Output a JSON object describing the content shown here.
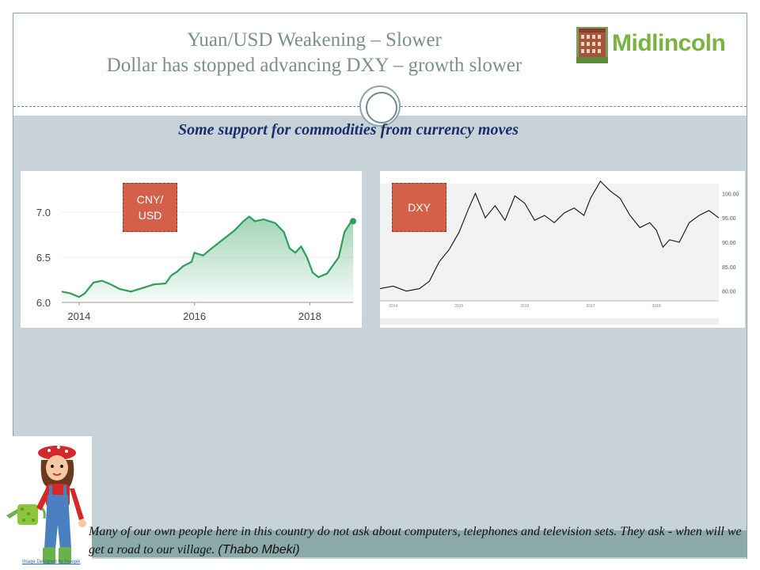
{
  "header": {
    "title_line_1": "Yuan/USD Weakening – Slower",
    "title_line_2": "Dollar has stopped advancing DXY – growth slower",
    "logo_text": "Midlincoln"
  },
  "subtitle": "Some support for commodities from currency moves",
  "chart_data": [
    {
      "type": "area",
      "tag": "CNY/\nUSD",
      "x_tick_labels": [
        "2014",
        "2016",
        "2018"
      ],
      "y_tick_labels": [
        "6.0",
        "6.5",
        "7.0"
      ],
      "ylim": [
        6.0,
        7.0
      ],
      "xlim": [
        2013.7,
        2018.75
      ],
      "x": [
        2013.7,
        2013.85,
        2014.0,
        2014.1,
        2014.25,
        2014.4,
        2014.55,
        2014.7,
        2014.9,
        2015.1,
        2015.3,
        2015.5,
        2015.6,
        2015.7,
        2015.8,
        2015.95,
        2016.0,
        2016.15,
        2016.3,
        2016.5,
        2016.7,
        2016.85,
        2016.95,
        2017.05,
        2017.2,
        2017.4,
        2017.55,
        2017.65,
        2017.75,
        2017.85,
        2017.95,
        2018.05,
        2018.15,
        2018.3,
        2018.5,
        2018.6,
        2018.7,
        2018.75
      ],
      "values": [
        6.12,
        6.1,
        6.06,
        6.1,
        6.22,
        6.24,
        6.2,
        6.15,
        6.12,
        6.16,
        6.2,
        6.21,
        6.3,
        6.34,
        6.4,
        6.45,
        6.55,
        6.52,
        6.6,
        6.7,
        6.8,
        6.9,
        6.95,
        6.9,
        6.92,
        6.88,
        6.78,
        6.6,
        6.55,
        6.62,
        6.5,
        6.33,
        6.28,
        6.32,
        6.5,
        6.78,
        6.88,
        6.9
      ]
    },
    {
      "type": "line",
      "tag": "DXY",
      "x_tick_labels": [
        "2014",
        "2015",
        "2016",
        "2017",
        "2018"
      ],
      "y_tick_labels": [
        "80.00",
        "85.00",
        "90.00",
        "95.00",
        "100.00"
      ],
      "ylim": [
        78,
        102
      ],
      "xlim": [
        2013.8,
        2018.95
      ],
      "x": [
        2013.8,
        2014.0,
        2014.2,
        2014.4,
        2014.55,
        2014.7,
        2014.85,
        2015.0,
        2015.15,
        2015.25,
        2015.4,
        2015.55,
        2015.7,
        2015.85,
        2016.0,
        2016.15,
        2016.3,
        2016.45,
        2016.6,
        2016.75,
        2016.9,
        2017.0,
        2017.15,
        2017.3,
        2017.45,
        2017.6,
        2017.75,
        2017.9,
        2018.0,
        2018.1,
        2018.2,
        2018.35,
        2018.5,
        2018.65,
        2018.8,
        2018.95
      ],
      "values": [
        80.5,
        81.0,
        80.0,
        80.5,
        82.0,
        86.0,
        88.5,
        92.0,
        97.0,
        100.0,
        95.0,
        97.5,
        94.5,
        99.5,
        98.0,
        94.5,
        95.5,
        94.0,
        96.0,
        97.0,
        95.5,
        99.0,
        102.5,
        100.5,
        99.0,
        95.5,
        93.0,
        94.0,
        92.5,
        89.0,
        90.5,
        90.0,
        94.0,
        95.5,
        96.5,
        95.0
      ]
    }
  ],
  "farmer_image": {
    "credit": "Image Designed by Freepik"
  },
  "quote": {
    "text": "Many of our own people here in this country do not ask about computers, telephones and television sets. They ask - when will we get a road to our village. ",
    "author": "(Thabo Mbeki)"
  }
}
